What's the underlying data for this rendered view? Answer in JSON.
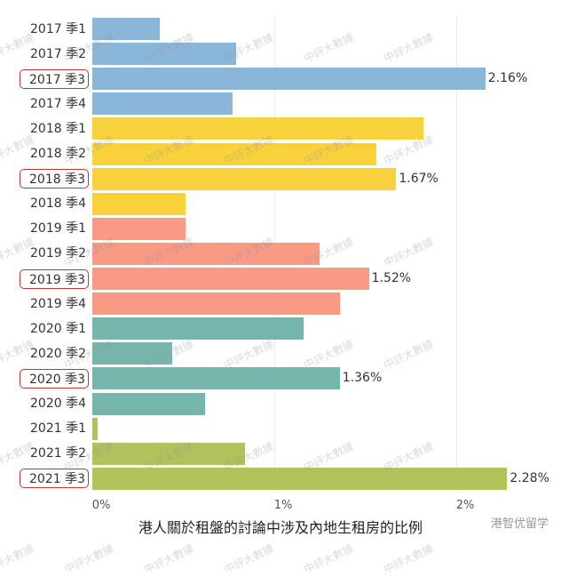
{
  "chart_data": {
    "type": "bar",
    "orientation": "horizontal",
    "title": "",
    "xlabel": "港人關於租盤的討論中涉及內地生租房的比例",
    "ylabel": "",
    "xlim": [
      0,
      0.0235
    ],
    "x_ticks": [
      "0%",
      "1%",
      "2%"
    ],
    "grid": true,
    "categories": [
      "2017 季1",
      "2017 季2",
      "2017 季3",
      "2017 季4",
      "2018 季1",
      "2018 季2",
      "2018 季3",
      "2018 季4",
      "2019 季1",
      "2019 季2",
      "2019 季3",
      "2019 季4",
      "2020 季1",
      "2020 季2",
      "2020 季3",
      "2020 季4",
      "2021 季1",
      "2021 季2",
      "2021 季3"
    ],
    "values": [
      0.37,
      0.79,
      2.16,
      0.77,
      1.82,
      1.56,
      1.67,
      0.51,
      0.51,
      1.25,
      1.52,
      1.36,
      1.16,
      0.44,
      1.36,
      0.62,
      0.03,
      0.84,
      2.28
    ],
    "highlighted": [
      "2017 季3",
      "2018 季3",
      "2019 季3",
      "2020 季3",
      "2021 季3"
    ],
    "data_labels": {
      "2017 季3": "2.16%",
      "2018 季3": "1.67%",
      "2019 季3": "1.52%",
      "2020 季3": "1.36%",
      "2021 季3": "2.28%"
    },
    "year_colors": {
      "2017": "#8ab6d9",
      "2018": "#f7d23c",
      "2019": "#f99a85",
      "2020": "#76b5ac",
      "2021": "#afc35a"
    }
  },
  "watermark": "中評大數據",
  "brand": "港智优留学"
}
